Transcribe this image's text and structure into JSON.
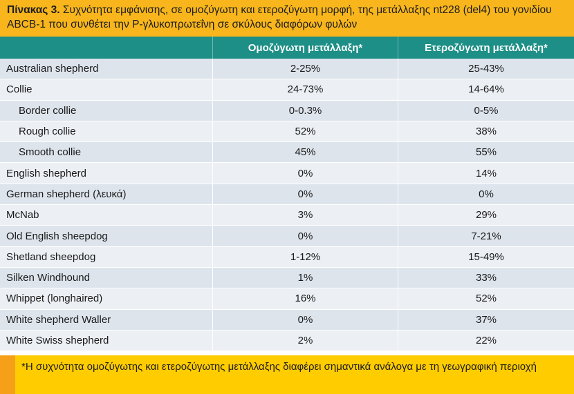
{
  "caption": {
    "label": "Πίνακας 3.",
    "text": " Συχνότητα εμφάνισης, σε ομοζύγωτη και ετεροζύγωτη μορφή, της μετάλλαξης nt228 (del4) του γονιδίου ABCB-1 που συνθέτει την P-γλυκοπρωτεΐνη σε σκύλους διαφόρων φυλών"
  },
  "table": {
    "headers": [
      "",
      "Ομοζύγωτη μετάλλαξη*",
      "Ετεροζύγωτη μετάλλαξη*"
    ],
    "rows": [
      {
        "breed": "Australian shepherd",
        "homo": "2-25%",
        "hetero": "25-43%"
      },
      {
        "breed": "Collie",
        "homo": "24-73%",
        "hetero": "14-64%"
      },
      {
        "breed": "Border collie",
        "homo": "0-0.3%",
        "hetero": "0-5%"
      },
      {
        "breed": "Rough collie",
        "homo": "52%",
        "hetero": "38%"
      },
      {
        "breed": "Smooth collie",
        "homo": "45%",
        "hetero": "55%"
      },
      {
        "breed": "English shepherd",
        "homo": "0%",
        "hetero": "14%"
      },
      {
        "breed": "German shepherd  (λευκά)",
        "homo": "0%",
        "hetero": "0%"
      },
      {
        "breed": "McNab",
        "homo": "3%",
        "hetero": "29%"
      },
      {
        "breed": "Old English sheepdog",
        "homo": "0%",
        "hetero": "7-21%"
      },
      {
        "breed": "Shetland sheepdog",
        "homo": "1-12%",
        "hetero": "15-49%"
      },
      {
        "breed": "Silken Windhound",
        "homo": "1%",
        "hetero": "33%"
      },
      {
        "breed": "Whippet (longhaired)",
        "homo": "16%",
        "hetero": "52%"
      },
      {
        "breed": "White shepherd Waller",
        "homo": "0%",
        "hetero": "37%"
      },
      {
        "breed": "White Swiss shepherd",
        "homo": "2%",
        "hetero": "22%"
      }
    ]
  },
  "footnote": {
    "text": "*Η συχνότητα ομοζύγωτης και ετεροζύγωτης μετάλλαξης διαφέρει σημαντικά ανάλογα με τη γεωγραφική περιοχή"
  }
}
